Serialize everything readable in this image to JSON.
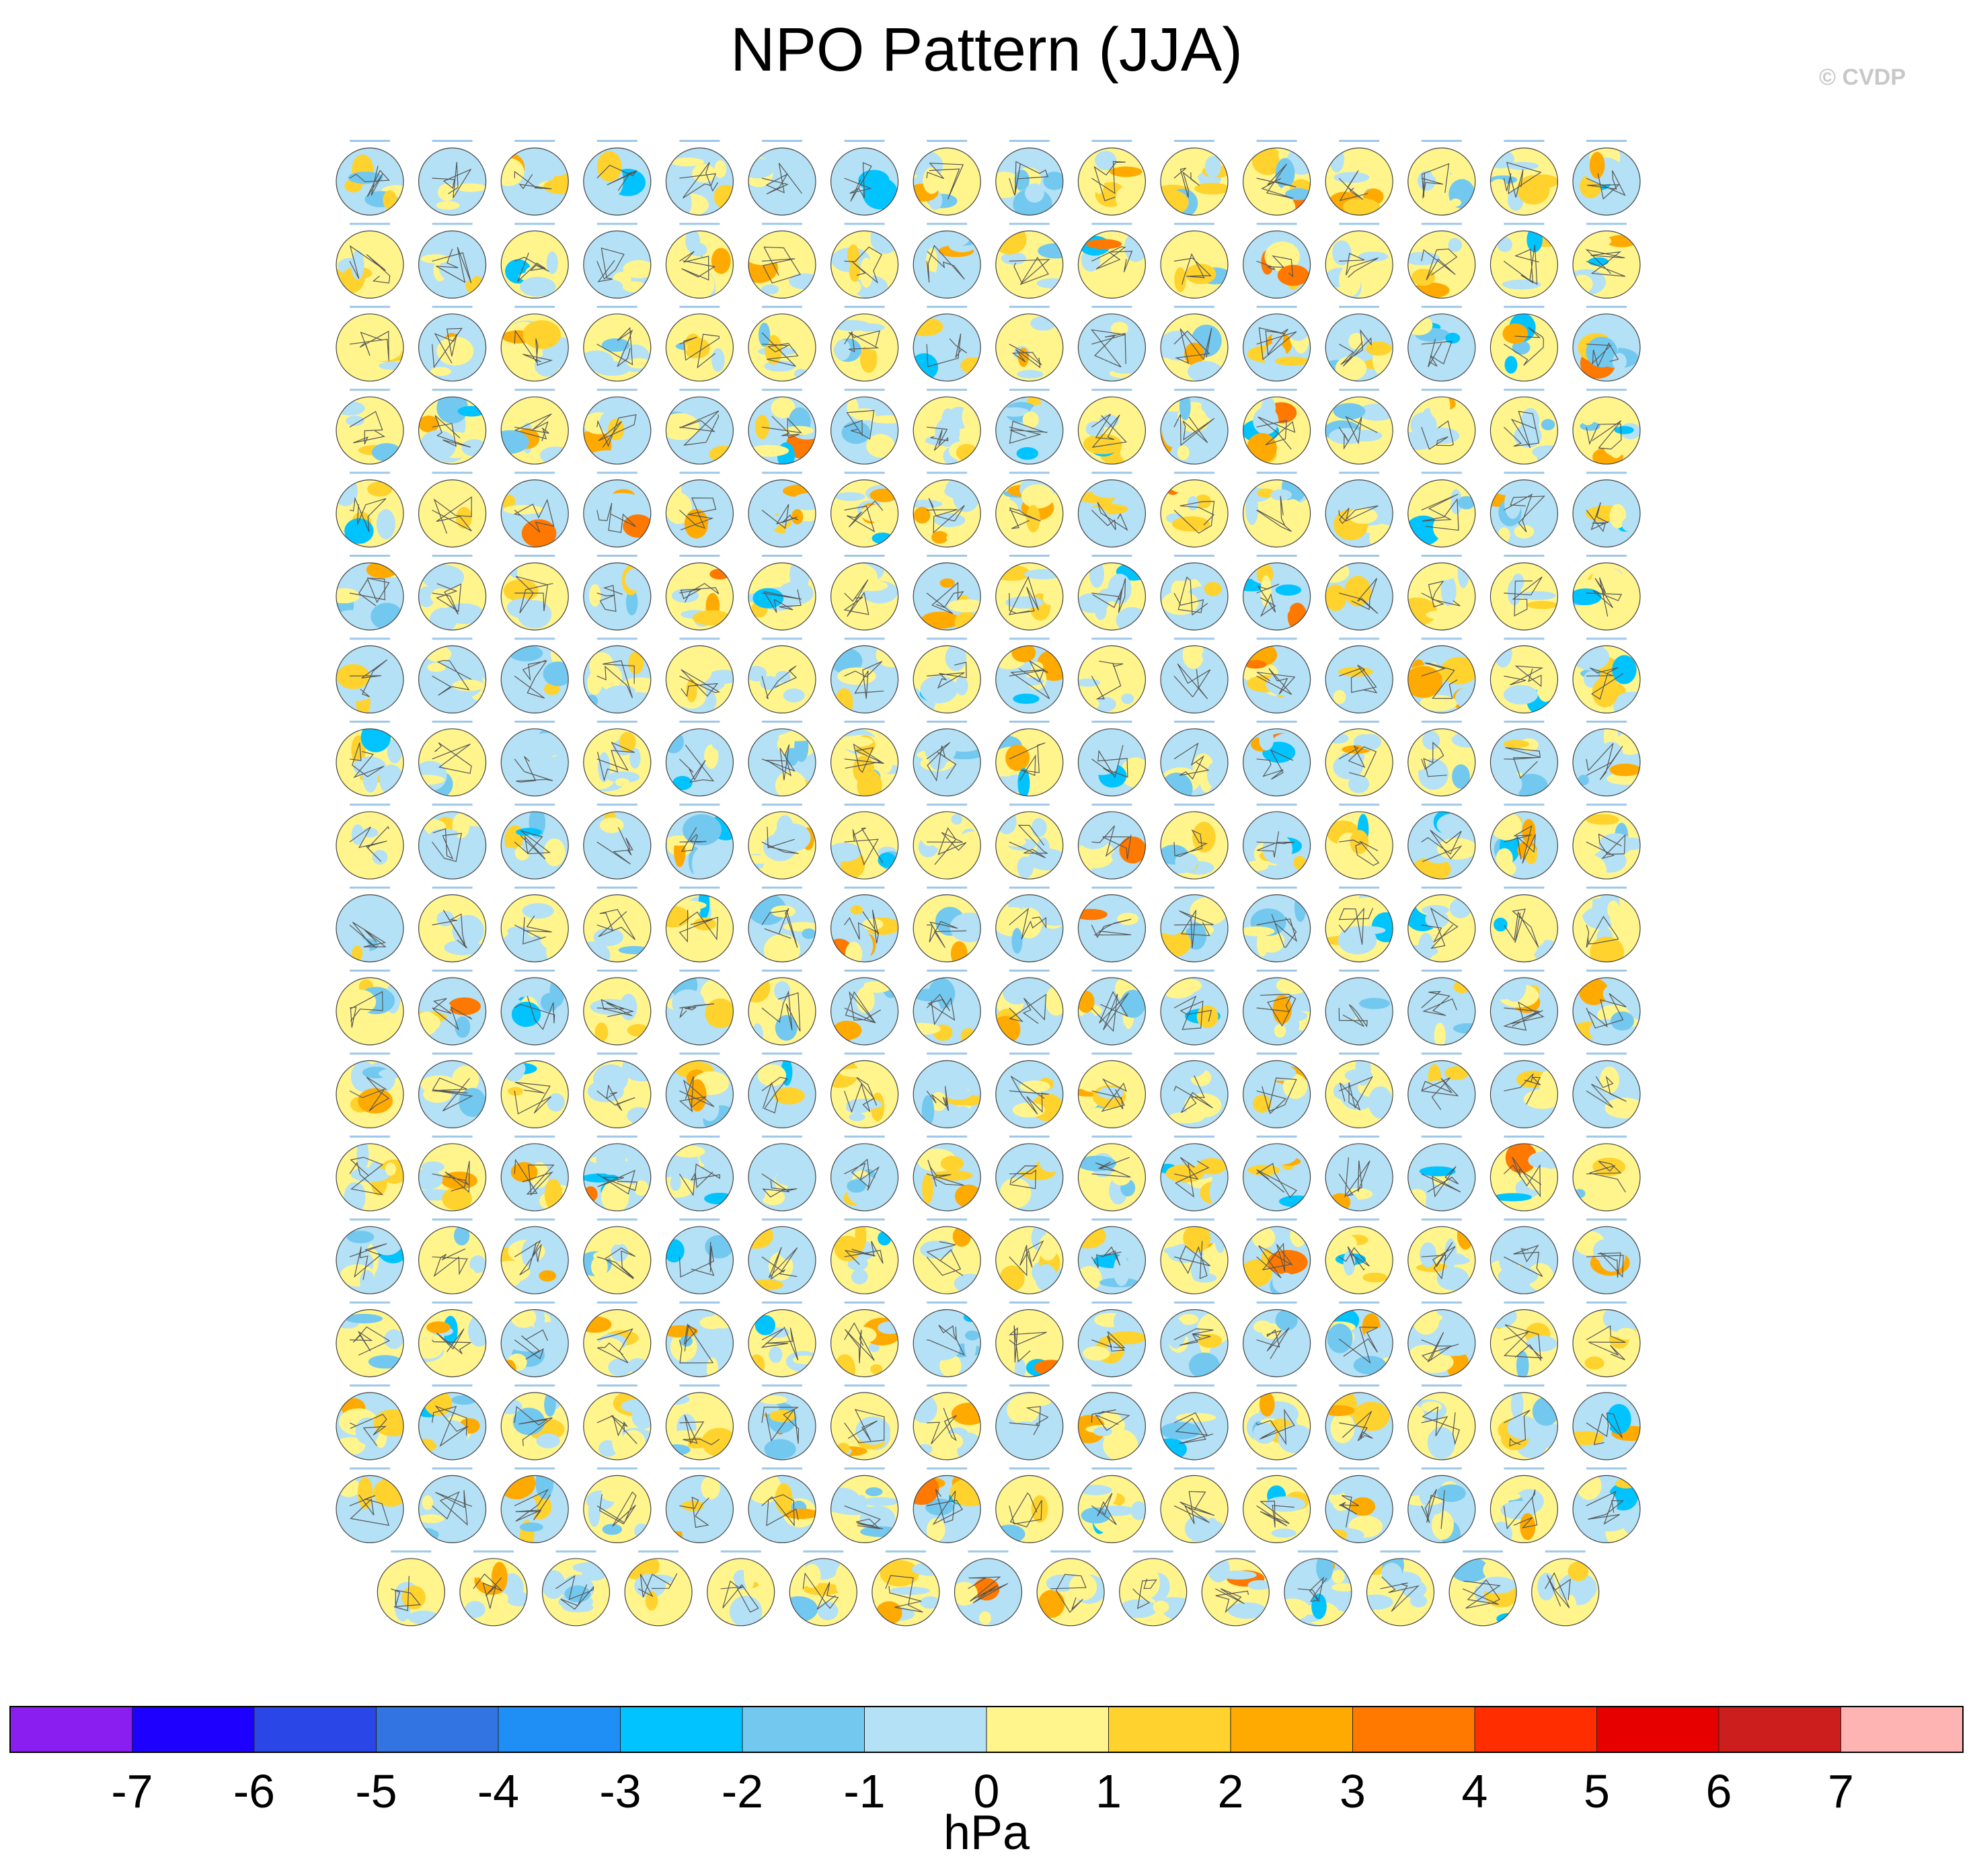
{
  "title": "NPO Pattern (JJA)",
  "credit": "© CVDP",
  "chart_data": {
    "type": "heatmap",
    "title": "NPO Pattern (JJA)",
    "panel_layout": {
      "full_rows": 17,
      "columns": 16,
      "last_row_panels": 15
    },
    "colorbar": {
      "units": "hPa",
      "tick_labels": [
        "-7",
        "-6",
        "-5",
        "-4",
        "-3",
        "-2",
        "-1",
        "0",
        "1",
        "2",
        "3",
        "4",
        "5",
        "6",
        "7"
      ],
      "bins": [
        {
          "range": "< -7",
          "color": "#8a1ef0"
        },
        {
          "range": "-7 to -6",
          "color": "#1e00ff"
        },
        {
          "range": "-6 to -5",
          "color": "#2a46e6"
        },
        {
          "range": "-5 to -4",
          "color": "#3275e2"
        },
        {
          "range": "-4 to -3",
          "color": "#1f8ff5"
        },
        {
          "range": "-3 to -2",
          "color": "#00c3ff"
        },
        {
          "range": "-2 to -1",
          "color": "#73c8f0"
        },
        {
          "range": "-1 to 0",
          "color": "#b4e1f5"
        },
        {
          "range": "0 to 1",
          "color": "#fff58c"
        },
        {
          "range": "1 to 2",
          "color": "#ffd22d"
        },
        {
          "range": "2 to 3",
          "color": "#ffaa00"
        },
        {
          "range": "3 to 4",
          "color": "#ff7800"
        },
        {
          "range": "4 to 5",
          "color": "#ff2d00"
        },
        {
          "range": "5 to 6",
          "color": "#e60000"
        },
        {
          "range": "6 to 7",
          "color": "#cd1e1e"
        },
        {
          "range": "> 7",
          "color": "#ffb4b4"
        }
      ]
    }
  }
}
